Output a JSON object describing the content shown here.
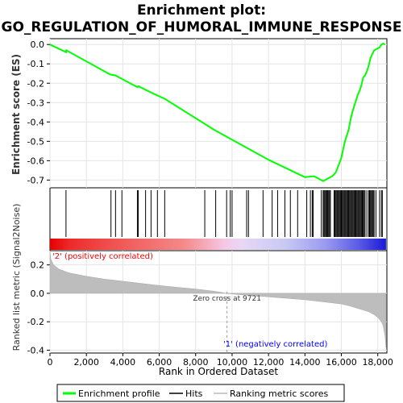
{
  "chart_data": {
    "type": "line",
    "title_line1": "Enrichment plot:",
    "title_line2": "GO_REGULATION_OF_HUMORAL_IMMUNE_RESPONSE",
    "xlabel": "Rank in Ordered Dataset",
    "ylabel_top": "Enrichment score (ES)",
    "ylabel_bottom": "Ranked list metric (Signal2Noise)",
    "xlim": [
      0,
      18500
    ],
    "x_ticks": [
      0,
      2000,
      4000,
      6000,
      8000,
      10000,
      12000,
      14000,
      16000,
      18000
    ],
    "x_tick_labels": [
      "0",
      "2,000",
      "4,000",
      "6,000",
      "8,000",
      "10,000",
      "12,000",
      "14,000",
      "16,000",
      "18,000"
    ],
    "es_ylim": [
      -0.74,
      0.03
    ],
    "es_ticks": [
      0.0,
      -0.1,
      -0.2,
      -0.3,
      -0.4,
      -0.5,
      -0.6,
      -0.7
    ],
    "es_tick_labels": [
      "0.0",
      "-0.1",
      "-0.2",
      "-0.3",
      "-0.4",
      "-0.5",
      "-0.6",
      "-0.7"
    ],
    "metric_ylim": [
      -0.42,
      0.3
    ],
    "metric_ticks": [
      0.2,
      0.0,
      -0.2,
      -0.4
    ],
    "metric_tick_labels": [
      "0.2",
      "0.0",
      "-0.2",
      "-0.4"
    ],
    "es_curve": {
      "x": [
        0,
        880,
        900,
        3300,
        3600,
        3900,
        4800,
        4850,
        5600,
        6300,
        9000,
        12000,
        14000,
        14500,
        14800,
        15000,
        15200,
        15400,
        15500,
        15600,
        15700,
        15800,
        15900,
        16000,
        16100,
        16200,
        16300,
        16400,
        16500,
        16600,
        16700,
        16800,
        16900,
        17000,
        17100,
        17200,
        17300,
        17400,
        17500,
        17600,
        17700,
        17800,
        17900,
        18000,
        18100,
        18200,
        18300,
        18400
      ],
      "y": [
        0.0,
        -0.04,
        -0.03,
        -0.155,
        -0.16,
        -0.175,
        -0.22,
        -0.215,
        -0.25,
        -0.28,
        -0.44,
        -0.595,
        -0.685,
        -0.68,
        -0.695,
        -0.705,
        -0.695,
        -0.685,
        -0.68,
        -0.67,
        -0.66,
        -0.635,
        -0.61,
        -0.585,
        -0.54,
        -0.5,
        -0.47,
        -0.44,
        -0.39,
        -0.35,
        -0.32,
        -0.29,
        -0.26,
        -0.24,
        -0.21,
        -0.17,
        -0.16,
        -0.14,
        -0.11,
        -0.07,
        -0.05,
        -0.03,
        -0.025,
        -0.02,
        -0.015,
        0.0,
        0.005,
        0.0
      ]
    },
    "hits": [
      880,
      3350,
      3600,
      3950,
      4800,
      4850,
      5250,
      5550,
      5900,
      6300,
      8500,
      9100,
      9700,
      9900,
      10000,
      10800,
      10900,
      11700,
      12200,
      12500,
      12900,
      13200,
      13600,
      14100,
      14300,
      14400,
      14450,
      14900,
      15000,
      15050,
      15100,
      15150,
      15200,
      15250,
      15300,
      15350,
      15400,
      15600,
      15650,
      15700,
      15750,
      15800,
      15850,
      15900,
      15950,
      16000,
      16050,
      16100,
      16150,
      16200,
      16250,
      16300,
      16350,
      16400,
      16450,
      16500,
      16550,
      16600,
      16650,
      16700,
      16750,
      16800,
      16850,
      16900,
      16950,
      17000,
      17050,
      17100,
      17150,
      17200,
      17250,
      17300,
      17400,
      17500,
      17550,
      17600,
      17650,
      17700,
      17750,
      17800,
      17900,
      18100,
      18200,
      18250
    ],
    "metric_curve": {
      "x": [
        0,
        50,
        200,
        500,
        1000,
        2000,
        3000,
        4000,
        5000,
        6000,
        7000,
        8000,
        9000,
        9721,
        10000,
        11000,
        12000,
        13000,
        14000,
        15000,
        16000,
        16500,
        17000,
        17500,
        17800,
        18000,
        18200,
        18300,
        18400,
        18450
      ],
      "y": [
        0.3,
        0.24,
        0.2,
        0.17,
        0.145,
        0.12,
        0.1,
        0.085,
        0.07,
        0.055,
        0.042,
        0.03,
        0.015,
        0.0,
        -0.005,
        -0.015,
        -0.025,
        -0.035,
        -0.045,
        -0.06,
        -0.075,
        -0.09,
        -0.11,
        -0.13,
        -0.15,
        -0.17,
        -0.2,
        -0.23,
        -0.3,
        -0.38
      ]
    },
    "zero_cross_rank": 9721,
    "zero_cross_label": "Zero cross at 9721",
    "pos_label": "'2' (positively correlated)",
    "neg_label": "'1' (negatively correlated)",
    "pos_label_color": "#ff0000",
    "neg_label_color": "#0000ff",
    "curve_color": "#00ff00",
    "legend": [
      "Enrichment profile",
      "Hits",
      "Ranking metric scores"
    ]
  }
}
